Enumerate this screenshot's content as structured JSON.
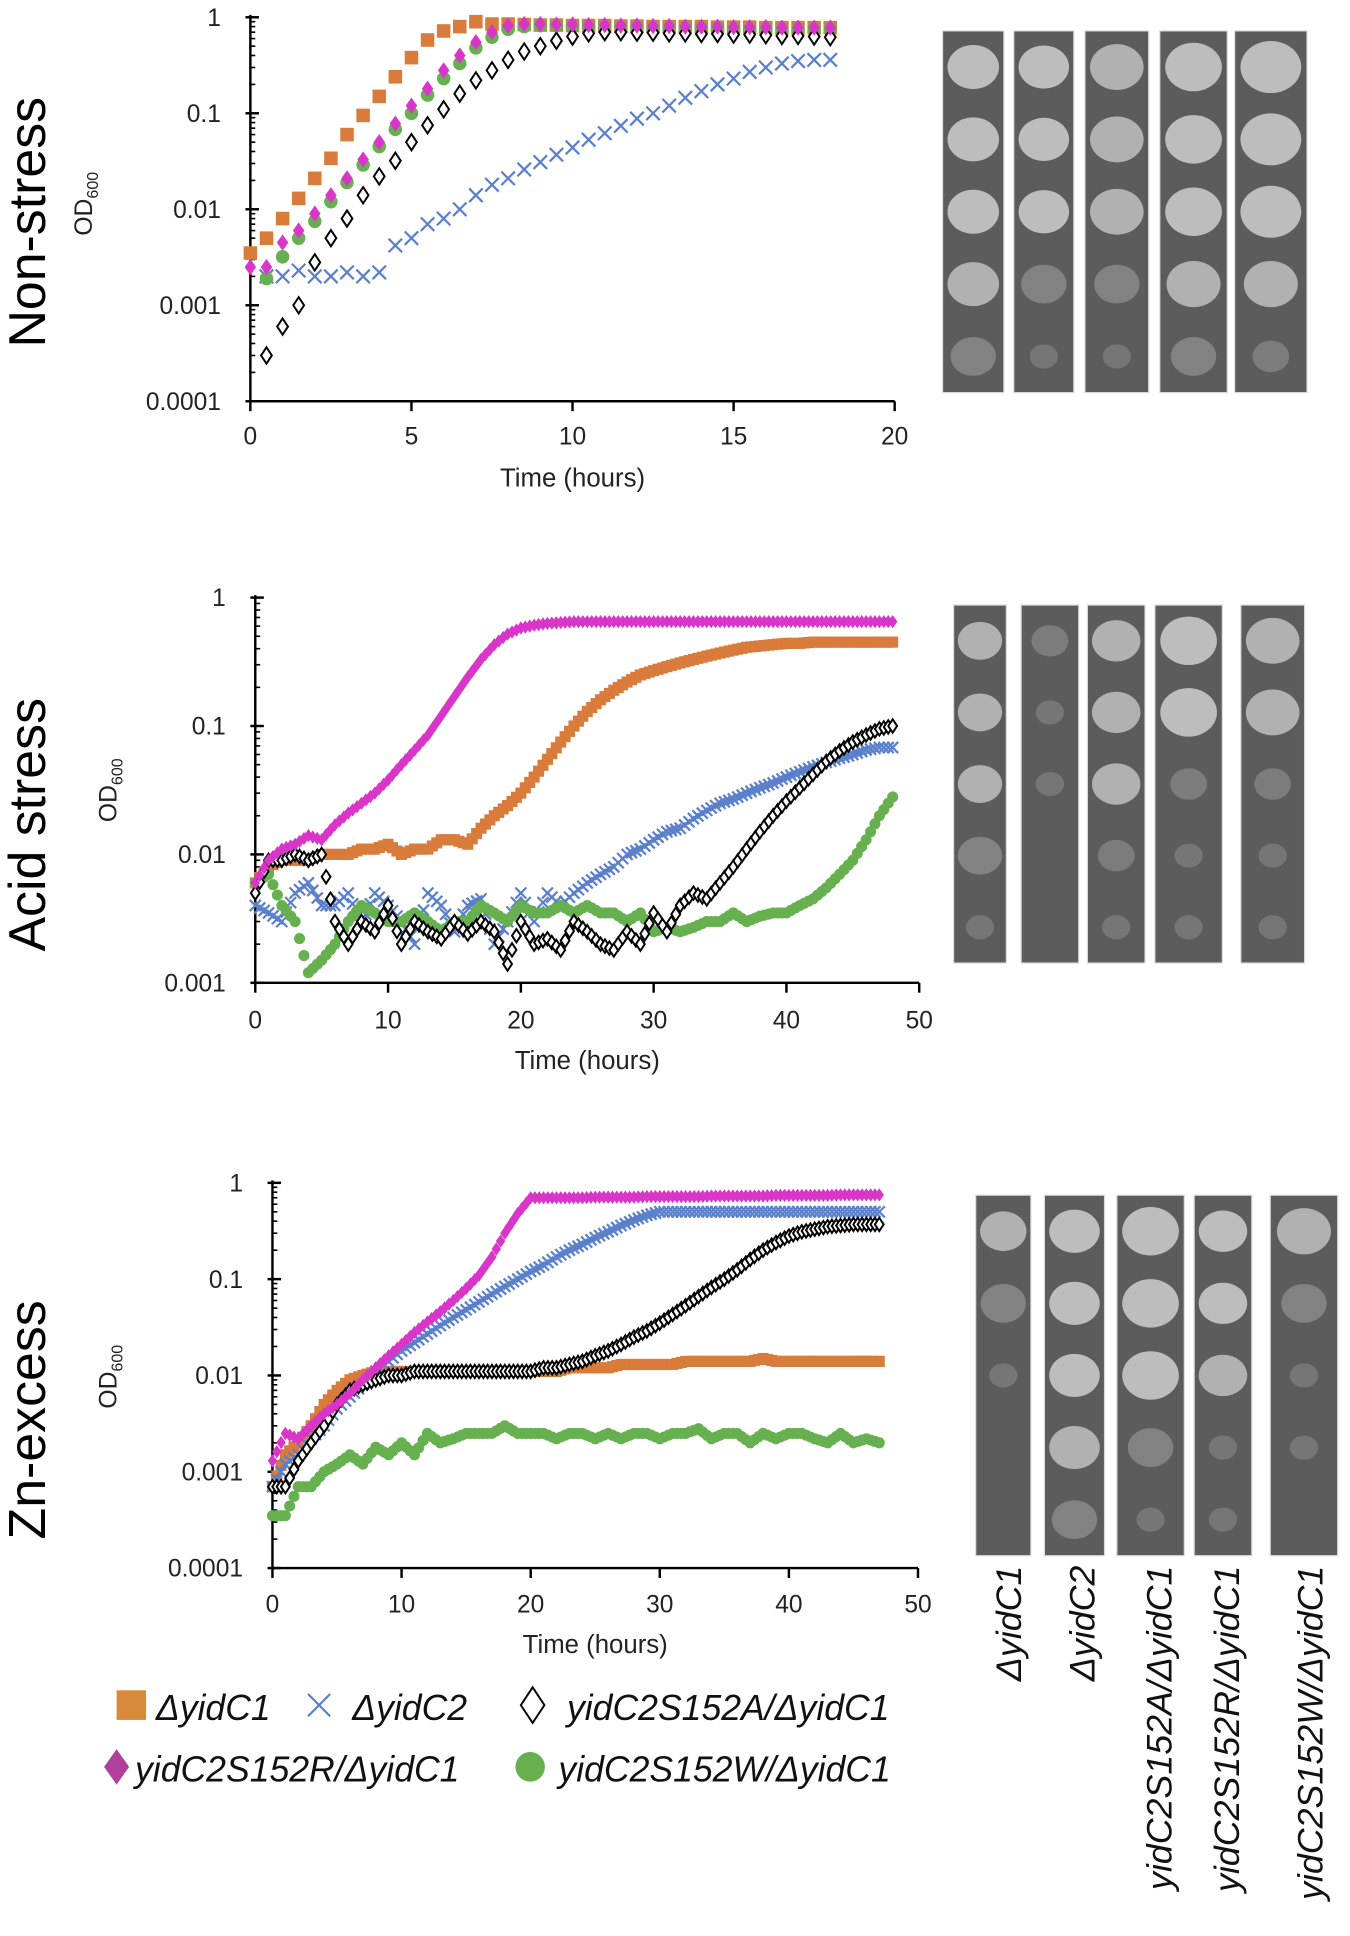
{
  "legend": [
    {
      "label": "ΔyidC1",
      "marker": "square",
      "color": "#D97B3A"
    },
    {
      "label": "ΔyidC2",
      "marker": "x",
      "color": "#5A7FCB"
    },
    {
      "label": "yidC2S152A/ΔyidC1",
      "marker": "open-diamond",
      "color": "#000000"
    },
    {
      "label": "yidC2S152R/ΔyidC1",
      "marker": "diamond",
      "color": "#D935C8"
    },
    {
      "label": "yidC2S152W/ΔyidC1",
      "marker": "circle",
      "color": "#66B050"
    }
  ],
  "strain_labels": [
    "ΔyidC1",
    "ΔyidC2",
    "yidC2S152A/ΔyidC1",
    "yidC2S152R/ΔyidC1",
    "yidC2S152W/ΔyidC1"
  ],
  "chart_data": [
    {
      "type": "scatter",
      "title": "Non-stress",
      "ylabel": "OD",
      "ylabel_sub": "600",
      "xlabel": "Time (hours)",
      "yscale": "log",
      "ylim": [
        0.0001,
        1
      ],
      "xlim": [
        0,
        20
      ],
      "yticks": [
        "1",
        "0.1",
        "0.01",
        "0.001",
        "0.0001"
      ],
      "xticks": [
        "0",
        "5",
        "10",
        "15",
        "20"
      ],
      "series": [
        {
          "name": "ΔyidC1",
          "t0": 0,
          "dt": 0.5,
          "y": [
            0.0035,
            0.005,
            0.008,
            0.013,
            0.021,
            0.034,
            0.06,
            0.095,
            0.15,
            0.24,
            0.38,
            0.58,
            0.72,
            0.8,
            0.9,
            0.85,
            0.85,
            0.84,
            0.83,
            0.83,
            0.82,
            0.82,
            0.82,
            0.81,
            0.81,
            0.8,
            0.8,
            0.8,
            0.8,
            0.79,
            0.79,
            0.79,
            0.78,
            0.78,
            0.78,
            0.78,
            0.78
          ]
        },
        {
          "name": "ΔyidC2",
          "t0": 0.5,
          "dt": 0.5,
          "y": [
            0.002,
            0.002,
            0.0023,
            0.002,
            0.002,
            0.0022,
            0.002,
            0.0022,
            0.0042,
            0.005,
            0.007,
            0.008,
            0.01,
            0.014,
            0.018,
            0.021,
            0.026,
            0.031,
            0.037,
            0.044,
            0.053,
            0.062,
            0.074,
            0.088,
            0.1,
            0.12,
            0.145,
            0.17,
            0.2,
            0.23,
            0.27,
            0.3,
            0.33,
            0.35,
            0.36,
            0.36
          ]
        },
        {
          "name": "yidC2S152A/ΔyidC1",
          "t0": 0.5,
          "dt": 0.5,
          "y": [
            0.0003,
            0.0006,
            0.001,
            0.0028,
            0.005,
            0.008,
            0.014,
            0.022,
            0.032,
            0.05,
            0.075,
            0.11,
            0.16,
            0.22,
            0.28,
            0.36,
            0.44,
            0.5,
            0.57,
            0.63,
            0.68,
            0.7,
            0.7,
            0.69,
            0.69,
            0.68,
            0.68,
            0.67,
            0.67,
            0.66,
            0.66,
            0.65,
            0.64,
            0.64,
            0.63,
            0.62
          ]
        },
        {
          "name": "yidC2S152R/ΔyidC1",
          "t0": 0,
          "dt": 0.5,
          "y": [
            0.0025,
            0.0025,
            0.0045,
            0.006,
            0.009,
            0.014,
            0.021,
            0.033,
            0.05,
            0.078,
            0.12,
            0.18,
            0.28,
            0.4,
            0.55,
            0.7,
            0.82,
            0.85,
            0.85,
            0.84,
            0.84,
            0.83,
            0.83,
            0.82,
            0.82,
            0.81,
            0.81,
            0.8,
            0.8,
            0.8,
            0.79,
            0.79,
            0.79,
            0.78,
            0.78,
            0.78,
            0.78
          ]
        },
        {
          "name": "yidC2S152W/ΔyidC1",
          "t0": 0.5,
          "dt": 0.5,
          "y": [
            0.0019,
            0.0032,
            0.005,
            0.0075,
            0.012,
            0.019,
            0.029,
            0.045,
            0.068,
            0.1,
            0.155,
            0.23,
            0.33,
            0.48,
            0.62,
            0.75,
            0.8,
            0.82,
            0.82,
            0.81,
            0.8,
            0.8,
            0.79,
            0.79,
            0.78,
            0.78,
            0.77,
            0.77,
            0.77,
            0.76,
            0.76,
            0.76,
            0.75,
            0.75,
            0.75,
            0.75
          ]
        }
      ]
    },
    {
      "type": "scatter",
      "title": "Acid stress",
      "ylabel": "OD",
      "ylabel_sub": "600",
      "xlabel": "Time (hours)",
      "yscale": "log",
      "ylim": [
        0.001,
        1
      ],
      "xlim": [
        0,
        50
      ],
      "yticks": [
        "1",
        "0.1",
        "0.01",
        "0.001"
      ],
      "xticks": [
        "0",
        "10",
        "20",
        "30",
        "40",
        "50"
      ],
      "series": [
        {
          "name": "ΔyidC1",
          "t0": 0,
          "dt": 1,
          "y": [
            0.006,
            0.008,
            0.009,
            0.009,
            0.009,
            0.01,
            0.01,
            0.01,
            0.011,
            0.011,
            0.012,
            0.01,
            0.011,
            0.011,
            0.013,
            0.013,
            0.012,
            0.016,
            0.02,
            0.024,
            0.03,
            0.04,
            0.055,
            0.075,
            0.1,
            0.13,
            0.16,
            0.19,
            0.22,
            0.25,
            0.27,
            0.29,
            0.31,
            0.33,
            0.35,
            0.37,
            0.39,
            0.41,
            0.42,
            0.43,
            0.44,
            0.44,
            0.45,
            0.45,
            0.45,
            0.45,
            0.45,
            0.45,
            0.45
          ]
        },
        {
          "name": "ΔyidC2",
          "t0": 0,
          "dt": 1,
          "y": [
            0.004,
            0.0035,
            0.003,
            0.005,
            0.006,
            0.004,
            0.004,
            0.005,
            0.0028,
            0.005,
            0.004,
            0.003,
            0.002,
            0.005,
            0.004,
            0.0025,
            0.004,
            0.0045,
            0.002,
            0.003,
            0.005,
            0.003,
            0.005,
            0.004,
            0.005,
            0.006,
            0.007,
            0.008,
            0.01,
            0.011,
            0.013,
            0.015,
            0.016,
            0.019,
            0.022,
            0.025,
            0.027,
            0.03,
            0.033,
            0.036,
            0.04,
            0.044,
            0.048,
            0.052,
            0.056,
            0.06,
            0.065,
            0.068,
            0.068
          ]
        },
        {
          "name": "yidC2S152A/ΔyidC1",
          "t0": 0,
          "dt": 1,
          "y": [
            0.005,
            0.009,
            0.009,
            0.01,
            0.009,
            0.01,
            0.003,
            0.002,
            0.003,
            0.0025,
            0.004,
            0.002,
            0.003,
            0.0025,
            0.0022,
            0.003,
            0.0024,
            0.003,
            0.0025,
            0.0014,
            0.003,
            0.002,
            0.0022,
            0.0018,
            0.003,
            0.0025,
            0.002,
            0.0018,
            0.0025,
            0.002,
            0.0035,
            0.0025,
            0.004,
            0.005,
            0.0045,
            0.006,
            0.008,
            0.011,
            0.015,
            0.02,
            0.026,
            0.033,
            0.042,
            0.053,
            0.064,
            0.075,
            0.085,
            0.095,
            0.1
          ]
        },
        {
          "name": "yidC2S152R/ΔyidC1",
          "t0": 0,
          "dt": 1,
          "y": [
            0.006,
            0.009,
            0.011,
            0.012,
            0.014,
            0.013,
            0.017,
            0.021,
            0.025,
            0.03,
            0.038,
            0.05,
            0.065,
            0.085,
            0.12,
            0.17,
            0.24,
            0.33,
            0.43,
            0.52,
            0.58,
            0.61,
            0.63,
            0.64,
            0.65,
            0.65,
            0.65,
            0.65,
            0.65,
            0.65,
            0.65,
            0.65,
            0.65,
            0.65,
            0.65,
            0.65,
            0.65,
            0.65,
            0.65,
            0.65,
            0.65,
            0.65,
            0.65,
            0.65,
            0.65,
            0.65,
            0.65,
            0.65,
            0.65
          ]
        },
        {
          "name": "yidC2S152W/ΔyidC1",
          "t0": 0,
          "dt": 1,
          "y": [
            0.006,
            0.007,
            0.004,
            0.003,
            0.0012,
            0.0015,
            0.002,
            0.003,
            0.004,
            0.0035,
            0.003,
            0.003,
            0.0035,
            0.003,
            0.0025,
            0.003,
            0.003,
            0.004,
            0.0035,
            0.003,
            0.004,
            0.0035,
            0.0035,
            0.004,
            0.0035,
            0.004,
            0.0035,
            0.0035,
            0.003,
            0.0035,
            0.0025,
            0.0027,
            0.0025,
            0.0027,
            0.003,
            0.003,
            0.0035,
            0.003,
            0.0033,
            0.0035,
            0.0035,
            0.004,
            0.0045,
            0.0055,
            0.007,
            0.009,
            0.013,
            0.02,
            0.028
          ]
        }
      ]
    },
    {
      "type": "scatter",
      "title": "Zn-excess",
      "ylabel": "OD",
      "ylabel_sub": "600",
      "xlabel": "Time (hours)",
      "yscale": "log",
      "ylim": [
        0.0001,
        1
      ],
      "xlim": [
        0,
        50
      ],
      "yticks": [
        "1",
        "0.1",
        "0.01",
        "0.001",
        "0.0001"
      ],
      "xticks": [
        "0",
        "10",
        "20",
        "30",
        "40",
        "50"
      ],
      "series": [
        {
          "name": "ΔyidC1",
          "t0": 0,
          "dt": 1,
          "y": [
            0.0007,
            0.0015,
            0.002,
            0.003,
            0.005,
            0.007,
            0.009,
            0.01,
            0.011,
            0.011,
            0.011,
            0.011,
            0.011,
            0.011,
            0.011,
            0.011,
            0.011,
            0.011,
            0.011,
            0.011,
            0.011,
            0.011,
            0.011,
            0.012,
            0.012,
            0.012,
            0.012,
            0.013,
            0.013,
            0.013,
            0.013,
            0.013,
            0.014,
            0.014,
            0.014,
            0.014,
            0.014,
            0.014,
            0.015,
            0.014,
            0.014,
            0.014,
            0.014,
            0.014,
            0.014,
            0.014,
            0.014,
            0.014
          ]
        },
        {
          "name": "ΔyidC2",
          "t0": 0,
          "dt": 1,
          "y": [
            0.0007,
            0.0012,
            0.0015,
            0.0022,
            0.003,
            0.0045,
            0.006,
            0.008,
            0.011,
            0.014,
            0.018,
            0.022,
            0.027,
            0.033,
            0.04,
            0.048,
            0.058,
            0.07,
            0.084,
            0.1,
            0.12,
            0.14,
            0.17,
            0.2,
            0.23,
            0.27,
            0.31,
            0.36,
            0.41,
            0.46,
            0.5,
            0.5,
            0.5,
            0.5,
            0.5,
            0.5,
            0.5,
            0.5,
            0.5,
            0.5,
            0.5,
            0.5,
            0.5,
            0.5,
            0.5,
            0.5,
            0.5,
            0.5
          ]
        },
        {
          "name": "yidC2S152A/ΔyidC1",
          "t0": 0,
          "dt": 1,
          "y": [
            0.0007,
            0.0007,
            0.0013,
            0.002,
            0.003,
            0.005,
            0.007,
            0.008,
            0.009,
            0.01,
            0.01,
            0.011,
            0.011,
            0.011,
            0.011,
            0.011,
            0.011,
            0.011,
            0.011,
            0.011,
            0.011,
            0.012,
            0.012,
            0.013,
            0.014,
            0.016,
            0.018,
            0.021,
            0.025,
            0.029,
            0.035,
            0.043,
            0.053,
            0.066,
            0.082,
            0.1,
            0.125,
            0.16,
            0.2,
            0.24,
            0.28,
            0.31,
            0.33,
            0.35,
            0.36,
            0.37,
            0.37,
            0.37
          ]
        },
        {
          "name": "yidC2S152R/ΔyidC1",
          "t0": 0,
          "dt": 1,
          "y": [
            0.0013,
            0.0025,
            0.0022,
            0.003,
            0.004,
            0.005,
            0.0065,
            0.009,
            0.012,
            0.016,
            0.021,
            0.028,
            0.036,
            0.046,
            0.06,
            0.08,
            0.11,
            0.17,
            0.3,
            0.48,
            0.7,
            0.7,
            0.7,
            0.7,
            0.7,
            0.71,
            0.71,
            0.71,
            0.71,
            0.72,
            0.72,
            0.72,
            0.72,
            0.72,
            0.73,
            0.73,
            0.73,
            0.73,
            0.73,
            0.74,
            0.74,
            0.74,
            0.74,
            0.74,
            0.75,
            0.75,
            0.75,
            0.75
          ]
        },
        {
          "name": "yidC2S152W/ΔyidC1",
          "t0": 0,
          "dt": 1,
          "y": [
            0.00035,
            0.00035,
            0.0007,
            0.0007,
            0.001,
            0.0012,
            0.0015,
            0.0012,
            0.0018,
            0.0015,
            0.002,
            0.0015,
            0.0025,
            0.002,
            0.0022,
            0.0025,
            0.0025,
            0.0025,
            0.003,
            0.0025,
            0.0025,
            0.0025,
            0.0022,
            0.0025,
            0.0025,
            0.0022,
            0.0025,
            0.0022,
            0.0025,
            0.0025,
            0.0022,
            0.0025,
            0.0025,
            0.0028,
            0.0022,
            0.0025,
            0.0025,
            0.002,
            0.0025,
            0.0022,
            0.0025,
            0.0025,
            0.0022,
            0.002,
            0.0025,
            0.002,
            0.0022,
            0.002
          ]
        }
      ]
    }
  ]
}
